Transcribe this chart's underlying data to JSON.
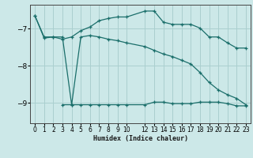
{
  "xlabel": "Humidex (Indice chaleur)",
  "background_color": "#cce8e8",
  "grid_color": "#aacfcf",
  "line_color": "#1a6e6a",
  "x_ticks": [
    0,
    1,
    2,
    3,
    4,
    5,
    6,
    7,
    8,
    9,
    10,
    12,
    13,
    14,
    15,
    16,
    17,
    18,
    19,
    20,
    21,
    22,
    23
  ],
  "ylim": [
    -9.55,
    -6.35
  ],
  "xlim": [
    -0.5,
    23.5
  ],
  "yticks": [
    -9,
    -8,
    -7
  ],
  "curve1_x": [
    0,
    1,
    2,
    3,
    4,
    5,
    6,
    7,
    8,
    9,
    10,
    12,
    13,
    14,
    15,
    16,
    17,
    18,
    19,
    20,
    21,
    22,
    23
  ],
  "curve1_y": [
    -6.65,
    -7.25,
    -7.22,
    -7.28,
    -7.22,
    -7.05,
    -6.95,
    -6.78,
    -6.72,
    -6.68,
    -6.68,
    -6.52,
    -6.52,
    -6.82,
    -6.88,
    -6.88,
    -6.88,
    -6.98,
    -7.22,
    -7.22,
    -7.38,
    -7.52,
    -7.52
  ],
  "curve2_x": [
    0,
    1,
    2,
    3,
    4,
    5,
    6,
    7,
    8,
    9,
    10,
    12,
    13,
    14,
    15,
    16,
    17,
    18,
    19,
    20,
    21,
    22,
    23
  ],
  "curve2_y": [
    -6.65,
    -7.22,
    -7.22,
    -7.22,
    -9.05,
    -7.22,
    -7.18,
    -7.22,
    -7.28,
    -7.32,
    -7.38,
    -7.48,
    -7.58,
    -7.68,
    -7.75,
    -7.85,
    -7.95,
    -8.18,
    -8.45,
    -8.65,
    -8.78,
    -8.88,
    -9.05
  ],
  "curve3_x": [
    3,
    4,
    5,
    6,
    7,
    8,
    9,
    10,
    12,
    13,
    14,
    15,
    16,
    17,
    18,
    19,
    20,
    21,
    22,
    23
  ],
  "curve3_y": [
    -9.05,
    -9.05,
    -9.05,
    -9.05,
    -9.05,
    -9.05,
    -9.05,
    -9.05,
    -9.05,
    -8.98,
    -8.98,
    -9.02,
    -9.02,
    -9.02,
    -8.98,
    -8.98,
    -8.98,
    -9.02,
    -9.08,
    -9.08
  ]
}
